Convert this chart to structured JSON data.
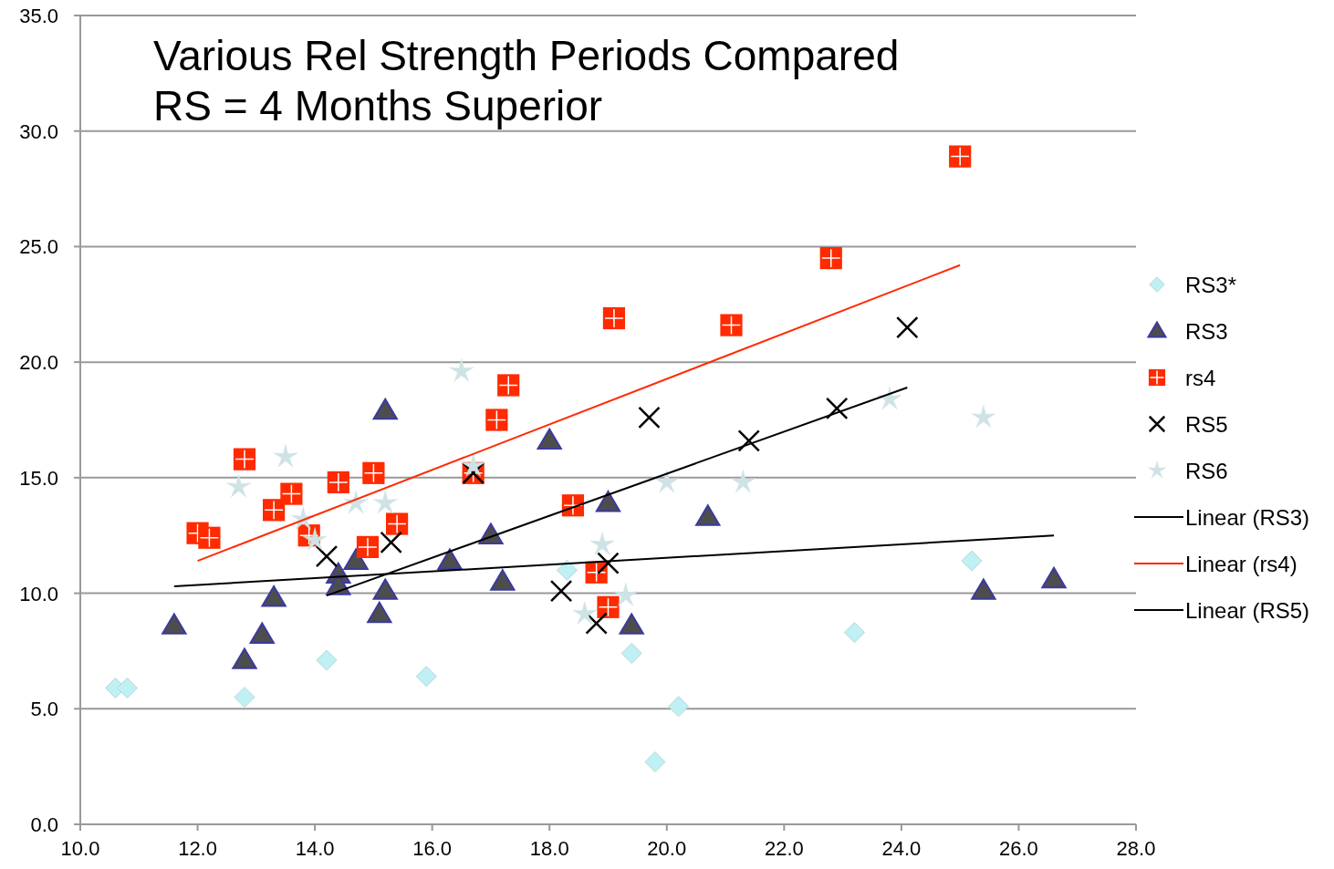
{
  "chart_data": {
    "type": "scatter",
    "title": "Various Rel Strength Periods Compared",
    "subtitle": "RS = 4 Months Superior",
    "xlim": [
      10,
      28
    ],
    "xticks": [
      {
        "value": 10,
        "label": "10.0"
      },
      {
        "value": 12,
        "label": "12.0"
      },
      {
        "value": 14,
        "label": "14.0"
      },
      {
        "value": 16,
        "label": "16.0"
      },
      {
        "value": 18,
        "label": "18.0"
      },
      {
        "value": 20,
        "label": "20.0"
      },
      {
        "value": 22,
        "label": "22.0"
      },
      {
        "value": 24,
        "label": "24.0"
      },
      {
        "value": 26,
        "label": "26.0"
      },
      {
        "value": 28,
        "label": "28.0"
      }
    ],
    "ylim": [
      0,
      35
    ],
    "yticks": [
      {
        "value": 0,
        "label": "0.0"
      },
      {
        "value": 5,
        "label": "5.0"
      },
      {
        "value": 10,
        "label": "10.0"
      },
      {
        "value": 15,
        "label": "15.0"
      },
      {
        "value": 20,
        "label": "20.0"
      },
      {
        "value": 25,
        "label": "25.0"
      },
      {
        "value": 30,
        "label": "30.0"
      },
      {
        "value": 35,
        "label": "35.0"
      }
    ],
    "grid": "y",
    "legend": "right",
    "series": [
      {
        "name": "RS3*",
        "color": "#bff0f3",
        "marker": "diamond",
        "x": [
          10.6,
          10.8,
          12.8,
          14.2,
          15.9,
          18.3,
          19.4,
          20.2,
          19.8,
          23.2,
          25.2
        ],
        "values": [
          5.9,
          5.9,
          5.5,
          7.1,
          6.4,
          11.0,
          7.4,
          5.1,
          2.7,
          8.3,
          11.4
        ]
      },
      {
        "name": "RS3",
        "color": "#4d4d4d",
        "marker": "triangle",
        "x": [
          11.6,
          12.8,
          13.1,
          13.3,
          14.4,
          14.4,
          14.7,
          15.1,
          15.2,
          15.2,
          16.3,
          17.0,
          17.2,
          18.0,
          19.0,
          19.4,
          20.7,
          25.4,
          26.6
        ],
        "values": [
          8.6,
          7.1,
          8.2,
          9.8,
          10.8,
          10.3,
          11.4,
          9.1,
          10.1,
          17.9,
          11.4,
          12.5,
          10.5,
          16.6,
          13.9,
          8.6,
          13.3,
          10.1,
          10.6
        ]
      },
      {
        "name": "rs4",
        "color": "#ff2a00",
        "marker": "square",
        "x": [
          12.0,
          12.2,
          12.8,
          13.3,
          13.6,
          13.9,
          14.4,
          14.9,
          15.0,
          15.4,
          16.7,
          17.1,
          17.3,
          18.4,
          18.8,
          19.0,
          19.1,
          21.1,
          22.8,
          25.0
        ],
        "values": [
          12.6,
          12.4,
          15.8,
          13.6,
          14.3,
          12.5,
          14.8,
          12.0,
          15.2,
          13.0,
          15.2,
          17.5,
          19.0,
          13.8,
          10.9,
          9.4,
          21.9,
          21.6,
          24.5,
          28.9
        ]
      },
      {
        "name": "RS5",
        "color": "#000000",
        "marker": "cross",
        "x": [
          14.2,
          15.3,
          16.7,
          18.2,
          18.8,
          19.0,
          19.7,
          21.4,
          22.9,
          24.1
        ],
        "values": [
          11.6,
          12.2,
          15.2,
          10.1,
          8.7,
          11.3,
          17.6,
          16.6,
          18.0,
          21.5
        ]
      },
      {
        "name": "RS6",
        "color": "#cfe3e6",
        "marker": "star",
        "x": [
          12.7,
          13.5,
          13.8,
          14.0,
          14.7,
          15.2,
          16.5,
          16.7,
          18.9,
          18.6,
          19.3,
          20.0,
          21.3,
          23.8,
          25.4
        ],
        "values": [
          14.6,
          15.9,
          13.2,
          12.3,
          13.9,
          13.9,
          19.6,
          15.5,
          12.1,
          9.1,
          9.9,
          14.8,
          14.8,
          18.4,
          17.6
        ]
      },
      {
        "name": "Linear (RS3)",
        "type": "line",
        "color": "#000000",
        "marker": "none",
        "x": [
          11.6,
          26.6
        ],
        "values": [
          10.3,
          12.5
        ]
      },
      {
        "name": "Linear (rs4)",
        "type": "line",
        "color": "#ff2a00",
        "marker": "none",
        "x": [
          12.0,
          25.0
        ],
        "values": [
          11.4,
          24.2
        ]
      },
      {
        "name": "Linear (RS5)",
        "type": "line",
        "color": "#000000",
        "marker": "none",
        "x": [
          14.2,
          24.1
        ],
        "values": [
          9.9,
          18.9
        ]
      }
    ]
  }
}
